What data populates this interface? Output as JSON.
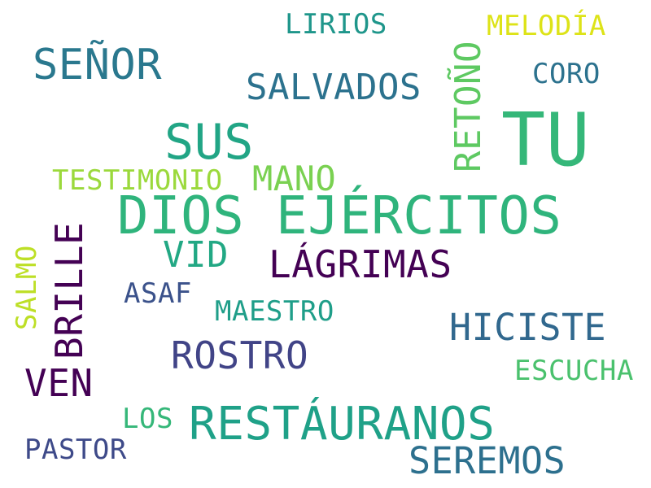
{
  "words": [
    {
      "text": "TU",
      "color": "#35b779"
    },
    {
      "text": "DIOS EJÉRCITOS",
      "color": "#2fb47c"
    },
    {
      "text": "RESTÁURANOS",
      "color": "#1fa188"
    },
    {
      "text": "SEÑOR",
      "color": "#2a788e"
    },
    {
      "text": "SUS",
      "color": "#21a585"
    },
    {
      "text": "SALVADOS",
      "color": "#2c728e"
    },
    {
      "text": "LÁGRIMAS",
      "color": "#440154"
    },
    {
      "text": "HICISTE",
      "color": "#31688e"
    },
    {
      "text": "ROSTRO",
      "color": "#414487"
    },
    {
      "text": "SEREMOS",
      "color": "#2d708e"
    },
    {
      "text": "BRILLE",
      "color": "#440154"
    },
    {
      "text": "VEN",
      "color": "#440154"
    },
    {
      "text": "RETOÑO",
      "color": "#5ec962"
    },
    {
      "text": "MANO",
      "color": "#7ad151"
    },
    {
      "text": "VID",
      "color": "#22a884"
    },
    {
      "text": "TESTIMONIO",
      "color": "#9bd93c"
    },
    {
      "text": "LIRIOS",
      "color": "#1f968b"
    },
    {
      "text": "MELODÍA",
      "color": "#dde318"
    },
    {
      "text": "CORO",
      "color": "#2c728e"
    },
    {
      "text": "ASAF",
      "color": "#3b528b"
    },
    {
      "text": "MAESTRO",
      "color": "#1f9e89"
    },
    {
      "text": "ESCUCHA",
      "color": "#4ac16d"
    },
    {
      "text": "LOS",
      "color": "#35b779"
    },
    {
      "text": "PASTOR",
      "color": "#3e4a89"
    },
    {
      "text": "SALMO",
      "color": "#bddf26"
    }
  ]
}
